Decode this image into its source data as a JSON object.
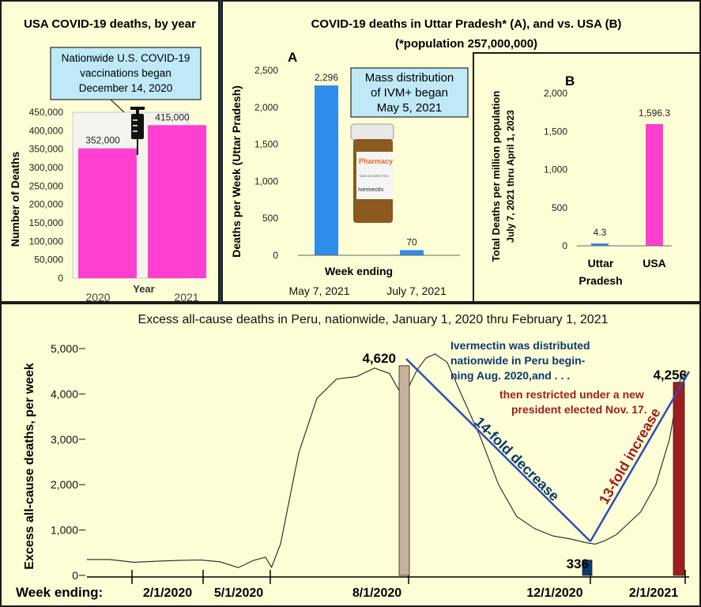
{
  "colors": {
    "magenta": "#ff3fcf",
    "blue": "#2e8de8",
    "tan": "#c8b19a",
    "navy": "#0b3a6e",
    "darkred": "#a01d1d",
    "panel_bg": "#fefed6",
    "callout_bg": "#bfe9f7"
  },
  "icons": [
    "syringe-icon",
    "pill-bottle-icon"
  ],
  "chart_data": [
    {
      "type": "bar",
      "title": "USA COVID-19 deaths, by year",
      "xlabel": "Year",
      "ylabel": "Number of Deaths",
      "categories": [
        "2020",
        "2021"
      ],
      "values": [
        352000,
        415000
      ],
      "value_labels": [
        "352,000",
        "415,000"
      ],
      "ylim": [
        0,
        450000
      ],
      "yticks": [
        "0",
        "50,000",
        "100,000",
        "150,000",
        "200,000",
        "250,000",
        "300,000",
        "350,000",
        "400,000",
        "450,000"
      ],
      "annotation": [
        "Nationwide U.S. COVID-19",
        "vaccinations began",
        "December 14, 2020"
      ],
      "grid": false
    },
    {
      "type": "bar",
      "title": "COVID-19 deaths in Uttar Pradesh* (A), and vs. USA (B)",
      "subtitle": "(*population 257,000,000)",
      "panel_label": "A",
      "xlabel": "Week ending",
      "ylabel": "Deaths per Week (Uttar Pradesh)",
      "categories": [
        "May 7, 2021",
        "July 7, 2021"
      ],
      "values": [
        2296,
        70
      ],
      "value_labels": [
        "2,296",
        "70"
      ],
      "ylim": [
        0,
        2500
      ],
      "yticks": [
        "0",
        "500",
        "1,000",
        "1,500",
        "2,000",
        "2,500"
      ],
      "annotation": [
        "Mass distribution",
        "of IVM+ began",
        "May 5, 2021"
      ],
      "bottle_text": [
        "Pharmacy",
        "TAKE AS DIRECTED",
        "Ivermectin"
      ]
    },
    {
      "type": "bar",
      "panel_label": "B",
      "ylabel": [
        "Total Deaths per million population",
        "July 7, 2021 thru April 1, 2023"
      ],
      "categories": [
        [
          "Uttar",
          "Pradesh"
        ],
        [
          "USA"
        ]
      ],
      "values": [
        4.3,
        1596.3
      ],
      "value_labels": [
        "4.3",
        "1,596.3"
      ],
      "ylim": [
        0,
        2000
      ],
      "yticks": [
        "0",
        "500",
        "1,000",
        "1,500",
        "2,000"
      ]
    },
    {
      "type": "line",
      "title": "Excess all-cause deaths in Peru, nationwide, January 1, 2020 thru February 1, 2021",
      "ylabel": "Excess all-cause deaths, per week",
      "xlabel": "Week ending:",
      "xticks": [
        "2/1/2020",
        "5/1/2020",
        "8/1/2020",
        "12/1/2020",
        "2/1/2021"
      ],
      "yticks": [
        "0",
        "1,000",
        "2,000",
        "3,000",
        "4,000",
        "5,000"
      ],
      "ylim": [
        0,
        5000
      ],
      "x_days": [
        0,
        15,
        31,
        45,
        60,
        75,
        88,
        100,
        110,
        118,
        122,
        128,
        140,
        152,
        165,
        178,
        190,
        200,
        206,
        212,
        218,
        224,
        230,
        238,
        248,
        260,
        272,
        284,
        296,
        308,
        320,
        330,
        336,
        342,
        350,
        358,
        366,
        376,
        385,
        392,
        396
      ],
      "y_values": [
        350,
        350,
        290,
        310,
        330,
        340,
        300,
        170,
        330,
        400,
        180,
        700,
        2700,
        3900,
        4330,
        4380,
        4570,
        4450,
        4090,
        4110,
        4520,
        4790,
        4880,
        4700,
        3950,
        3050,
        2000,
        1300,
        1030,
        870,
        800,
        720,
        690,
        760,
        900,
        1150,
        1400,
        2000,
        3000,
        4300,
        4480
      ],
      "highlight_bars": [
        {
          "label": "4,620",
          "value": 4620
        },
        {
          "label": "336",
          "value": 336
        },
        {
          "label": "4,256",
          "value": 4256
        }
      ],
      "annotations": {
        "blue": [
          "Ivermectin was distributed",
          "nationwide in Peru begin-",
          "ning Aug. 2020,and . . ."
        ],
        "red": [
          "then restricted under a new",
          "president elected Nov. 17."
        ],
        "decrease": "14-fold decrease",
        "increase": "13-fold increase"
      }
    }
  ]
}
